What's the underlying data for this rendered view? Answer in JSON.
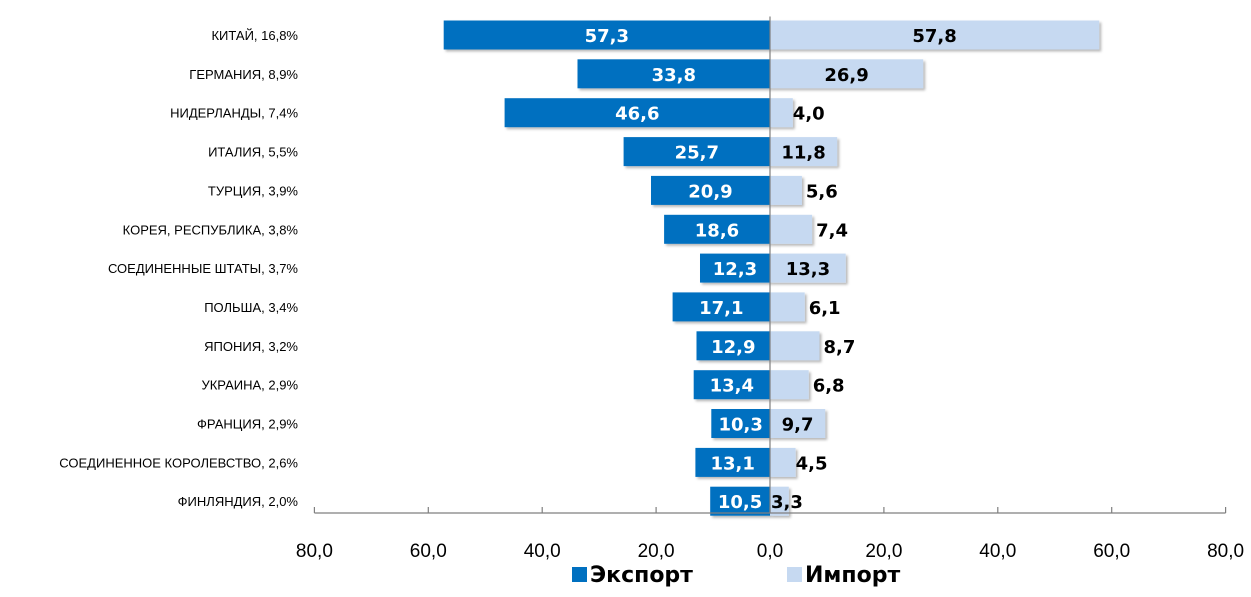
{
  "chart_data": {
    "type": "bar",
    "title": "",
    "orientation": "horizontal-diverging",
    "categories": [
      "КИТАЙ, 16,8%",
      "ГЕРМАНИЯ, 8,9%",
      "НИДЕРЛАНДЫ, 7,4%",
      "ИТАЛИЯ, 5,5%",
      "ТУРЦИЯ, 3,9%",
      "КОРЕЯ, РЕСПУБЛИКА, 3,8%",
      "СОЕДИНЕННЫЕ ШТАТЫ, 3,7%",
      "ПОЛЬША, 3,4%",
      "ЯПОНИЯ, 3,2%",
      "УКРАИНА, 2,9%",
      "ФРАНЦИЯ, 2,9%",
      "СОЕДИНЕННОЕ КОРОЛЕВСТВО, 2,6%",
      "ФИНЛЯНДИЯ, 2,0%"
    ],
    "series": [
      {
        "name": "Экспорт",
        "color": "#0070C0",
        "label_color": "#ffffff",
        "direction": "left",
        "values": [
          57.3,
          33.8,
          46.6,
          25.7,
          20.9,
          18.6,
          12.3,
          17.1,
          12.9,
          13.4,
          10.3,
          13.1,
          10.5
        ],
        "labels": [
          "57,3",
          "33,8",
          "46,6",
          "25,7",
          "20,9",
          "18,6",
          "12,3",
          "17,1",
          "12,9",
          "13,4",
          "10,3",
          "13,1",
          "10,5"
        ]
      },
      {
        "name": "Импорт",
        "color": "#C6D9F1",
        "label_color": "#000000",
        "direction": "right",
        "values": [
          57.8,
          26.9,
          4.0,
          11.8,
          5.6,
          7.4,
          13.3,
          6.1,
          8.7,
          6.8,
          9.7,
          4.5,
          3.3
        ],
        "labels": [
          "57,8",
          "26,9",
          "4,0",
          "11,8",
          "5,6",
          "7,4",
          "13,3",
          "6,1",
          "8,7",
          "6,8",
          "9,7",
          "4,5",
          "3,3"
        ]
      }
    ],
    "x_axis": {
      "range": [
        -80,
        80
      ],
      "ticks": [
        -80,
        -60,
        -40,
        -20,
        0,
        20,
        40,
        60,
        80
      ],
      "tick_labels": [
        "80,0",
        "60,0",
        "40,0",
        "20,0",
        "0,0",
        "20,0",
        "40,0",
        "60,0",
        "80,0"
      ]
    },
    "xlabel": "",
    "ylabel": "",
    "grid": false,
    "legend": {
      "position": "bottom-center",
      "entries": [
        "Экспорт",
        "Импорт"
      ]
    }
  }
}
